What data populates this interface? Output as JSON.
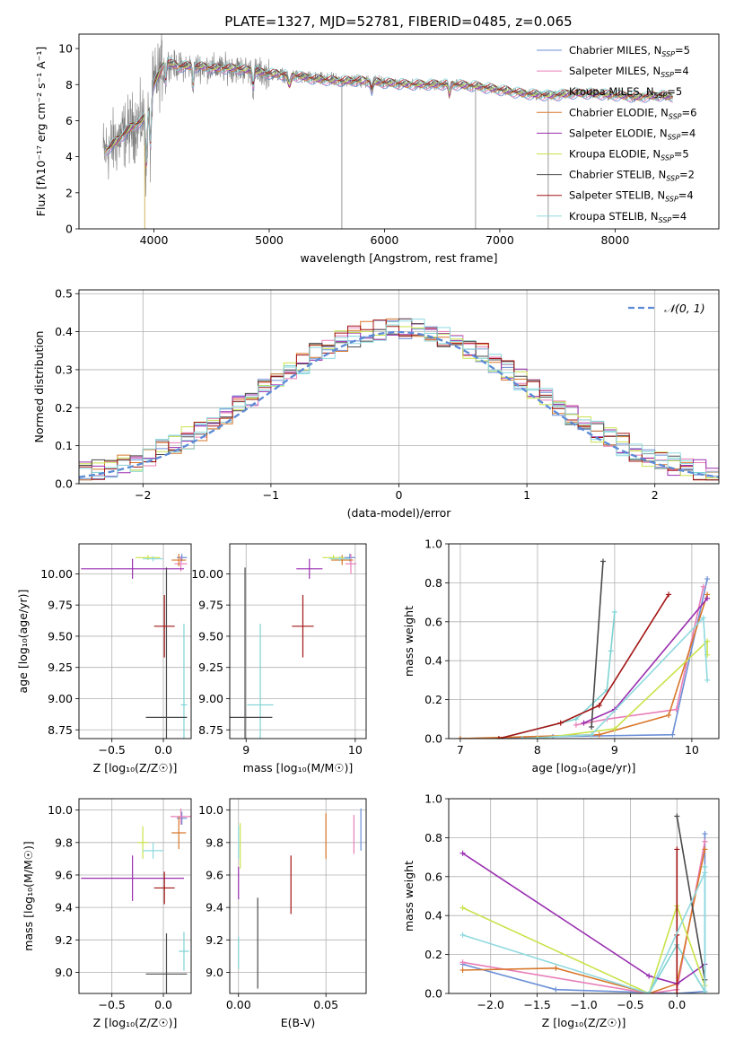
{
  "colors": [
    "#6b8fd6",
    "#e87fb8",
    "#7fd3d3",
    "#d9772a",
    "#9a2fb0",
    "#c9e34b",
    "#4a4a4a",
    "#a31515",
    "#8fd9df"
  ],
  "series_names": [
    "Chabrier MILES, N_SSP=5",
    "Salpeter MILES, N_SSP=4",
    "Kroupa MILES, N_SSP=5",
    "Chabrier ELODIE, N_SSP=6",
    "Salpeter ELODIE, N_SSP=4",
    "Kroupa ELODIE, N_SSP=5",
    "Chabrier STELIB, N_SSP=2",
    "Salpeter STELIB, N_SSP=4",
    "Kroupa STELIB, N_SSP=4"
  ],
  "chart_data": [
    {
      "type": "line",
      "title": "PLATE=1327, MJD=52781, FIBERID=0485, z=0.065",
      "xlabel": "wavelength [Angstrom, rest frame]",
      "ylabel": "Flux [fλ10⁻¹⁷ erg cm⁻² s⁻¹ A⁻¹]",
      "xlim": [
        3350,
        8900
      ],
      "ylim": [
        0,
        10.8
      ],
      "xticks": [
        4000,
        5000,
        6000,
        7000,
        8000
      ],
      "yticks": [
        0,
        2,
        4,
        6,
        8,
        10
      ],
      "legend": "top-right",
      "data_color": "#7f7f7f",
      "continuum_x": [
        3580,
        3700,
        3800,
        3900,
        3950,
        4000,
        4100,
        4200,
        4300,
        4400,
        4500,
        4600,
        4700,
        4800,
        4900,
        5000,
        5200,
        5400,
        5600,
        5800,
        6000,
        6200,
        6400,
        6600,
        6800,
        7000,
        7200,
        7400,
        7420,
        7500,
        7600,
        7800,
        8000,
        8200,
        8400,
        8500
      ],
      "continuum_y": [
        4.3,
        5.0,
        5.6,
        6.0,
        7.0,
        8.0,
        9.3,
        9.0,
        9.0,
        9.0,
        8.9,
        8.9,
        8.9,
        8.8,
        8.7,
        8.6,
        8.5,
        8.3,
        8.2,
        8.2,
        8.1,
        8.0,
        8.0,
        8.0,
        7.9,
        7.7,
        7.5,
        7.4,
        7.4,
        7.4,
        7.5,
        7.5,
        7.4,
        7.3,
        7.4,
        7.3
      ]
    },
    {
      "type": "bar",
      "subtype": "step-histogram",
      "xlabel": "(data-model)/error",
      "ylabel": "Normed distribution",
      "xlim": [
        -2.5,
        2.5
      ],
      "ylim": [
        0,
        0.51
      ],
      "xticks": [
        -2,
        -1,
        0,
        1,
        2
      ],
      "yticks": [
        0,
        0.1,
        0.2,
        0.3,
        0.4,
        0.5
      ],
      "bin_width": 0.1,
      "legend": "top-right",
      "reference_label": "𝒩(0, 1)",
      "reference_color": "#5b8ad6"
    },
    {
      "type": "scatter",
      "xlabel": "Z [log₁₀(Z/Z☉)]",
      "ylabel": "age  [log₁₀(age/yr)]",
      "xlim": [
        -0.82,
        0.27
      ],
      "ylim": [
        8.68,
        10.24
      ],
      "xticks": [
        -0.5,
        0.0
      ],
      "yticks": [
        8.75,
        9.0,
        9.25,
        9.5,
        9.75,
        10.0
      ],
      "points": [
        {
          "x": 0.18,
          "y": 10.13,
          "xerr": 0.05,
          "yerr": 0.03
        },
        {
          "x": 0.17,
          "y": 10.08,
          "xerr": 0.06,
          "yerr": 0.06
        },
        {
          "x": 0.2,
          "y": 8.95,
          "xerr": 0.03,
          "yerr": 0.65
        },
        {
          "x": 0.15,
          "y": 10.11,
          "xerr": 0.07,
          "yerr": 0.05
        },
        {
          "x": -0.3,
          "y": 10.04,
          "xerr": 0.5,
          "yerr": 0.08
        },
        {
          "x": -0.15,
          "y": 10.13,
          "xerr": 0.12,
          "yerr": 0.02
        },
        {
          "x": 0.03,
          "y": 8.85,
          "xerr": 0.2,
          "yerr": 1.2
        },
        {
          "x": 0.01,
          "y": 9.58,
          "xerr": 0.1,
          "yerr": 0.25
        },
        {
          "x": -0.1,
          "y": 10.12,
          "xerr": 0.1,
          "yerr": 0.02
        }
      ]
    },
    {
      "type": "scatter",
      "xlabel": "mass [log₁₀(M/M☉)]",
      "ylabel": "",
      "xlim": [
        8.85,
        10.1
      ],
      "ylim": [
        8.68,
        10.24
      ],
      "xticks": [
        9,
        10
      ],
      "yticks": [
        8.75,
        9.0,
        9.25,
        9.5,
        9.75,
        10.0
      ],
      "points": [
        {
          "x": 9.95,
          "y": 10.13,
          "xerr": 0.05,
          "yerr": 0.03
        },
        {
          "x": 9.96,
          "y": 10.08,
          "xerr": 0.05,
          "yerr": 0.08
        },
        {
          "x": 9.13,
          "y": 8.95,
          "xerr": 0.12,
          "yerr": 0.65
        },
        {
          "x": 9.88,
          "y": 10.11,
          "xerr": 0.1,
          "yerr": 0.04
        },
        {
          "x": 9.58,
          "y": 10.04,
          "xerr": 0.12,
          "yerr": 0.08
        },
        {
          "x": 9.8,
          "y": 10.13,
          "xerr": 0.1,
          "yerr": 0.02
        },
        {
          "x": 8.99,
          "y": 8.85,
          "xerr": 0.25,
          "yerr": 1.2
        },
        {
          "x": 9.52,
          "y": 9.58,
          "xerr": 0.1,
          "yerr": 0.25
        },
        {
          "x": 9.86,
          "y": 10.12,
          "xerr": 0.1,
          "yerr": 0.02
        }
      ]
    },
    {
      "type": "line",
      "xlabel": "age  [log₁₀(age/yr)]",
      "ylabel": "mass weight",
      "xlim": [
        6.85,
        10.35
      ],
      "ylim": [
        0,
        1.0
      ],
      "xticks": [
        7,
        8,
        9,
        10
      ],
      "yticks": [
        0,
        0.2,
        0.4,
        0.6,
        0.8,
        1.0
      ],
      "series": [
        {
          "x": [
            7.0,
            8.2,
            9.75,
            10.2
          ],
          "y": [
            0.0,
            0.01,
            0.02,
            0.82
          ]
        },
        {
          "x": [
            8.5,
            8.9,
            9.8,
            10.15
          ],
          "y": [
            0.07,
            0.1,
            0.15,
            0.78
          ]
        },
        {
          "x": [
            7.5,
            8.5,
            8.9,
            8.95,
            9.0
          ],
          "y": [
            0.0,
            0.1,
            0.25,
            0.45,
            0.65
          ]
        },
        {
          "x": [
            7.0,
            8.8,
            9.7,
            10.2
          ],
          "y": [
            0.0,
            0.02,
            0.12,
            0.74
          ]
        },
        {
          "x": [
            8.6,
            9.0,
            10.2
          ],
          "y": [
            0.08,
            0.15,
            0.72
          ]
        },
        {
          "x": [
            8.0,
            9.0,
            10.2,
            10.2
          ],
          "y": [
            0.0,
            0.05,
            0.5,
            0.43
          ]
        },
        {
          "x": [
            8.7,
            8.85
          ],
          "y": [
            0.06,
            0.91
          ]
        },
        {
          "x": [
            7.5,
            8.3,
            8.8,
            9.7
          ],
          "y": [
            0.0,
            0.08,
            0.17,
            0.74
          ]
        },
        {
          "x": [
            7.8,
            8.7,
            10.15,
            10.2
          ],
          "y": [
            0.0,
            0.02,
            0.62,
            0.3
          ]
        }
      ]
    },
    {
      "type": "scatter",
      "xlabel": "Z [log₁₀(Z/Z☉)]",
      "ylabel": "mass [log₁₀(M/M☉)]",
      "xlim": [
        -0.82,
        0.27
      ],
      "ylim": [
        8.87,
        10.07
      ],
      "xticks": [
        -0.5,
        0.0
      ],
      "yticks": [
        9.0,
        9.2,
        9.4,
        9.6,
        9.8,
        10.0
      ],
      "points": [
        {
          "x": 0.18,
          "y": 9.95,
          "xerr": 0.05,
          "yerr": 0.04
        },
        {
          "x": 0.17,
          "y": 9.96,
          "xerr": 0.1,
          "yerr": 0.05
        },
        {
          "x": 0.2,
          "y": 9.13,
          "xerr": 0.05,
          "yerr": 0.12
        },
        {
          "x": 0.15,
          "y": 9.86,
          "xerr": 0.07,
          "yerr": 0.1
        },
        {
          "x": -0.3,
          "y": 9.58,
          "xerr": 0.5,
          "yerr": 0.14
        },
        {
          "x": -0.2,
          "y": 9.8,
          "xerr": 0.05,
          "yerr": 0.1
        },
        {
          "x": 0.03,
          "y": 8.99,
          "xerr": 0.2,
          "yerr": 0.25
        },
        {
          "x": 0.01,
          "y": 9.52,
          "xerr": 0.1,
          "yerr": 0.1
        },
        {
          "x": -0.1,
          "y": 9.75,
          "xerr": 0.1,
          "yerr": 0.05
        }
      ]
    },
    {
      "type": "scatter",
      "xlabel": "E(B-V)",
      "ylabel": "",
      "xlim": [
        -0.005,
        0.073
      ],
      "ylim": [
        8.87,
        10.07
      ],
      "xticks": [
        0.0,
        0.05
      ],
      "yticks": [
        9.0,
        9.2,
        9.4,
        9.6,
        9.8,
        10.0
      ],
      "points": [
        {
          "x": 0.07,
          "y": 9.88,
          "yerr": 0.13
        },
        {
          "x": 0.066,
          "y": 9.85,
          "yerr": 0.12
        },
        {
          "x": 0.0,
          "y": 9.12,
          "yerr": 0.1
        },
        {
          "x": 0.05,
          "y": 9.84,
          "yerr": 0.14
        },
        {
          "x": 0.0,
          "y": 9.55,
          "yerr": 0.1
        },
        {
          "x": 0.001,
          "y": 9.78,
          "yerr": 0.14
        },
        {
          "x": 0.011,
          "y": 9.18,
          "yerr": 0.28
        },
        {
          "x": 0.03,
          "y": 9.54,
          "yerr": 0.18
        },
        {
          "x": 0.0,
          "y": 9.8,
          "yerr": 0.1
        }
      ]
    },
    {
      "type": "line",
      "xlabel": "Z [log₁₀(Z/Z☉)]",
      "ylabel": "mass weight",
      "xlim": [
        -2.45,
        0.45
      ],
      "ylim": [
        0,
        1.0
      ],
      "xticks": [
        -2.0,
        -1.5,
        -1.0,
        -0.5,
        0.0
      ],
      "yticks": [
        0,
        0.2,
        0.4,
        0.6,
        0.8,
        1.0
      ],
      "series": [
        {
          "x": [
            -2.3,
            -1.3,
            0.0,
            0.3,
            0.3
          ],
          "y": [
            0.15,
            0.02,
            0.0,
            0.01,
            0.82
          ]
        },
        {
          "x": [
            -2.3,
            -0.3,
            0.0,
            0.3
          ],
          "y": [
            0.16,
            0.0,
            0.02,
            0.78
          ]
        },
        {
          "x": [
            -0.3,
            0.0,
            0.3,
            0.3
          ],
          "y": [
            0.0,
            0.25,
            0.01,
            0.65
          ]
        },
        {
          "x": [
            -2.3,
            -1.3,
            -0.3,
            0.0,
            0.3
          ],
          "y": [
            0.12,
            0.13,
            0.0,
            0.05,
            0.74
          ]
        },
        {
          "x": [
            -2.3,
            -0.3,
            0.0,
            0.3
          ],
          "y": [
            0.72,
            0.09,
            0.05,
            0.15
          ]
        },
        {
          "x": [
            -2.3,
            -0.3,
            0.0,
            0.3
          ],
          "y": [
            0.44,
            0.0,
            0.45,
            0.04
          ]
        },
        {
          "x": [
            0.0,
            0.3
          ],
          "y": [
            0.91,
            0.07
          ]
        },
        {
          "x": [
            0.0,
            0.0,
            0.0
          ],
          "y": [
            0.0,
            0.74,
            0.3
          ]
        },
        {
          "x": [
            -2.3,
            -0.3,
            0.3,
            0.3
          ],
          "y": [
            0.3,
            0.0,
            0.62,
            0.0
          ]
        }
      ]
    }
  ]
}
